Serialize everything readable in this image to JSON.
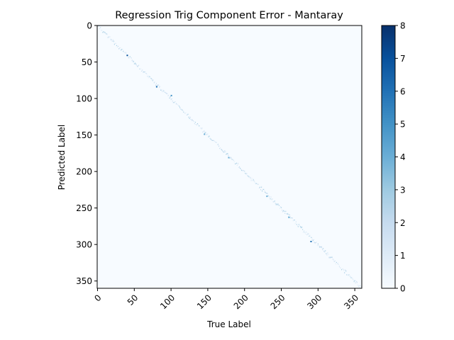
{
  "chart_data": {
    "type": "heatmap",
    "title": "Regression Trig Component Error - Mantaray",
    "xlabel": "True Label",
    "ylabel": "Predicted Label",
    "xlim": [
      0,
      360
    ],
    "ylim": [
      360,
      0
    ],
    "x_ticks": [
      "0",
      "50",
      "100",
      "150",
      "200",
      "250",
      "300",
      "350"
    ],
    "y_ticks": [
      "0",
      "50",
      "100",
      "150",
      "200",
      "250",
      "300",
      "350"
    ],
    "colorbar": {
      "min": 0,
      "max": 8,
      "ticks": [
        "0",
        "1",
        "2",
        "3",
        "4",
        "5",
        "6",
        "7",
        "8"
      ],
      "colormap": "Blues",
      "colors": [
        "#f7fbff",
        "#deebf7",
        "#c6dbef",
        "#9ecae1",
        "#6baed6",
        "#4292c6",
        "#2171b5",
        "#08519c",
        "#08306b"
      ]
    },
    "matrix_description": "Counts concentrated along the main diagonal (predicted ≈ true); off-diagonal cells ≈ 0",
    "highlighted_cells": [
      {
        "true": 40,
        "predicted": 40,
        "value": 7
      },
      {
        "true": 80,
        "predicted": 83,
        "value": 6
      },
      {
        "true": 100,
        "predicted": 95,
        "value": 5
      },
      {
        "true": 145,
        "predicted": 148,
        "value": 4
      },
      {
        "true": 178,
        "predicted": 180,
        "value": 4
      },
      {
        "true": 230,
        "predicted": 233,
        "value": 4
      },
      {
        "true": 260,
        "predicted": 262,
        "value": 4
      },
      {
        "true": 290,
        "predicted": 295,
        "value": 6
      }
    ]
  }
}
